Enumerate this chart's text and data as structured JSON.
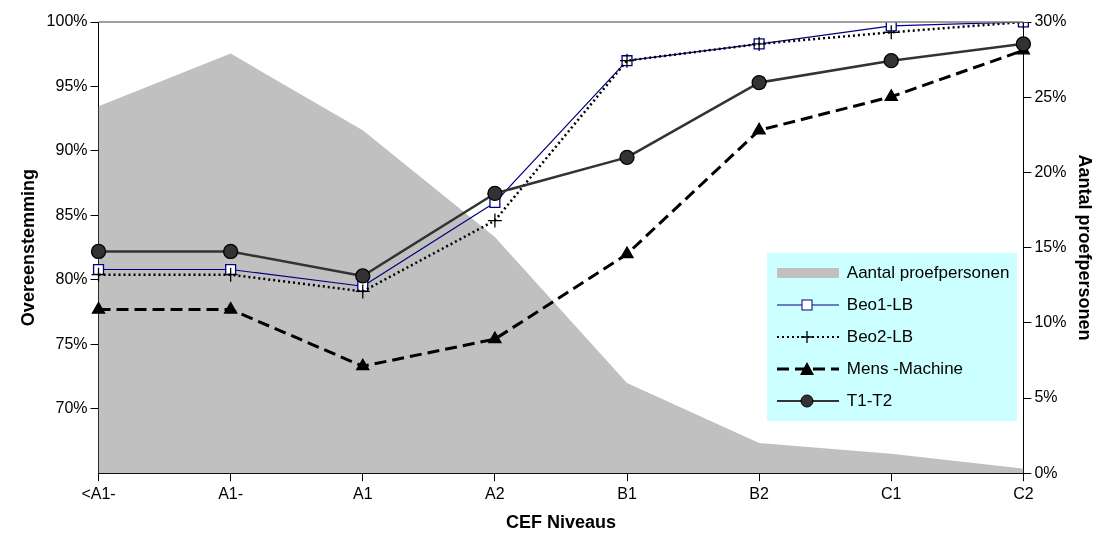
{
  "chart_data": {
    "type": "line",
    "xlabel": "CEF Niveaus",
    "ylabel": "Overeenstemming",
    "y2label": "Aantal proefpersonen",
    "categories": [
      "<A1-",
      "A1-",
      "A1",
      "A2",
      "B1",
      "B2",
      "C1",
      "C2"
    ],
    "series": [
      {
        "name": "Aantal proefpersonen",
        "type": "area",
        "axis": "y2",
        "color": "#c0c0c0",
        "values": [
          24.4,
          27.9,
          22.8,
          15.7,
          6.0,
          2.0,
          1.3,
          0.3
        ]
      },
      {
        "name": "Beo1-LB",
        "color": "#000080",
        "marker": "square",
        "line_style": "solid",
        "values": [
          80.8,
          80.8,
          79.5,
          86.0,
          97.0,
          98.3,
          99.7,
          100
        ]
      },
      {
        "name": "Beo2-LB",
        "color": "#000000",
        "marker": "cross",
        "line_style": "dotted",
        "values": [
          80.4,
          80.4,
          79.1,
          84.6,
          97.0,
          98.3,
          99.2,
          100
        ]
      },
      {
        "name": "Mens -Machine",
        "color": "#000000",
        "marker": "triangle",
        "line_style": "dashed",
        "values": [
          77.7,
          77.7,
          73.3,
          75.4,
          82.0,
          91.6,
          94.2,
          97.8
        ]
      },
      {
        "name": "T1-T2",
        "color": "#333333",
        "marker": "circle",
        "line_style": "solid",
        "values": [
          82.2,
          82.2,
          80.3,
          86.7,
          89.5,
          95.3,
          97.0,
          98.3
        ]
      }
    ],
    "ylim": [
      65,
      100
    ],
    "yticks": [
      {
        "value": 70,
        "label": "70%"
      },
      {
        "value": 75,
        "label": "75%"
      },
      {
        "value": 80,
        "label": "80%"
      },
      {
        "value": 85,
        "label": "85%"
      },
      {
        "value": 90,
        "label": "90%"
      },
      {
        "value": 95,
        "label": "95%"
      },
      {
        "value": 100,
        "label": "100%"
      }
    ],
    "y2lim": [
      0,
      30
    ],
    "y2ticks": [
      {
        "value": 0,
        "label": "0%"
      },
      {
        "value": 5,
        "label": "5%"
      },
      {
        "value": 10,
        "label": "10%"
      },
      {
        "value": 15,
        "label": "15%"
      },
      {
        "value": 20,
        "label": "20%"
      },
      {
        "value": 25,
        "label": "25%"
      },
      {
        "value": 30,
        "label": "30%"
      }
    ],
    "grid": false,
    "legend": "bottom right"
  }
}
